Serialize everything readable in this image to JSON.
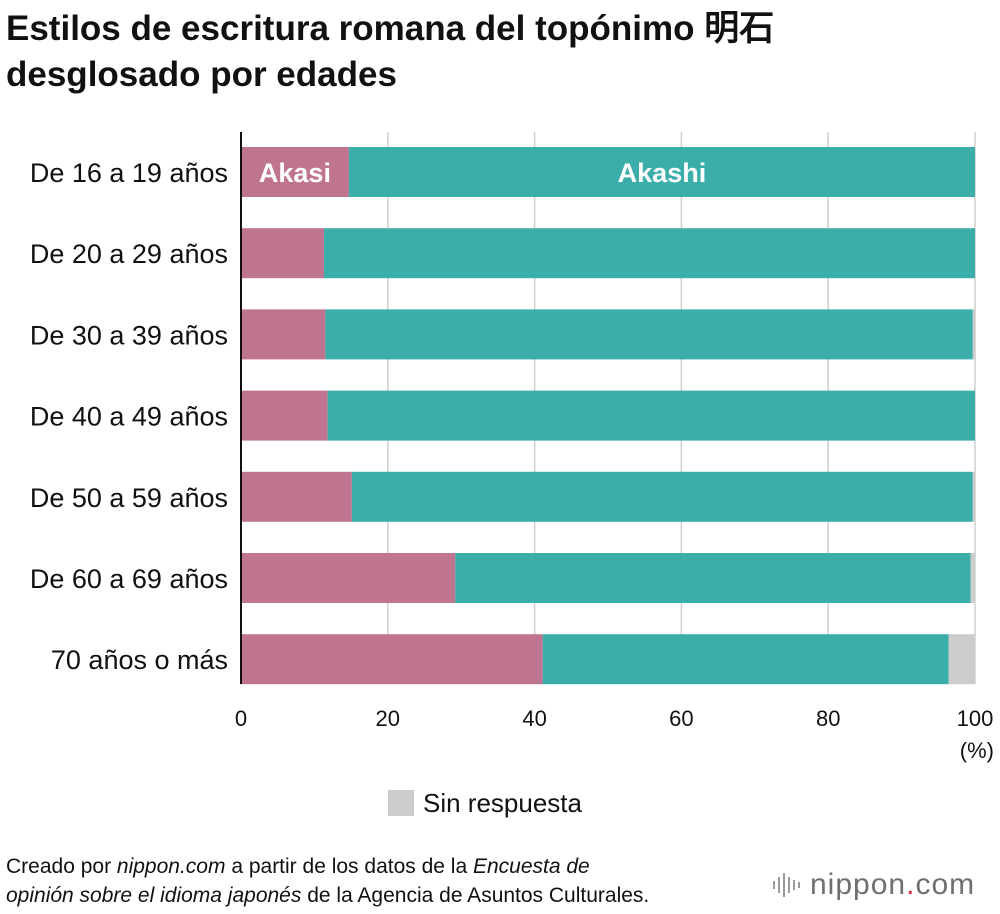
{
  "title_line1": "Estilos de escritura romana del topónimo 明石",
  "title_line2": "desglosado por edades",
  "chart_data": {
    "type": "bar",
    "orientation": "horizontal",
    "stacked": true,
    "categories": [
      "De 16 a 19 años",
      "De 20 a 29 años",
      "De 30 a 39 años",
      "De 40 a 49 años",
      "De 50 a 59 años",
      "De 60 a 69 años",
      "70 años o más"
    ],
    "series": [
      {
        "name": "Akasi",
        "color": "#bf758f",
        "values": [
          14.7,
          11.3,
          11.5,
          11.8,
          15.1,
          29.2,
          41.1
        ]
      },
      {
        "name": "Akashi",
        "color": "#3baeaa",
        "values": [
          85.3,
          88.7,
          88.2,
          88.2,
          84.6,
          70.2,
          55.3
        ]
      },
      {
        "name": "Sin respuesta",
        "color": "#cccccc",
        "values": [
          0.0,
          0.0,
          0.3,
          0.0,
          0.3,
          0.6,
          3.6
        ]
      }
    ],
    "xlim": [
      0,
      100
    ],
    "xticks": [
      0,
      20,
      40,
      60,
      80,
      100
    ],
    "xtick_labels": [
      "0",
      "20",
      "40",
      "60",
      "80",
      "100"
    ],
    "unit_label": "(%)",
    "grid": true,
    "inline_labels": [
      "Akasi",
      "Akashi"
    ],
    "legend": {
      "position": "bottom-center",
      "label": "Sin respuesta",
      "color": "#cccccc"
    }
  },
  "footer": {
    "line1_pre": "Creado por ",
    "line1_em1": "nippon.com",
    "line1_mid": " a partir de los datos de la ",
    "line1_em2": "Encuesta de",
    "line2_em": "opinión sobre el idioma japonés",
    "line2_post": " de la Agencia de Asuntos Culturales."
  },
  "brand": {
    "name": "nippon",
    "dot": ".",
    "tld": "com"
  }
}
